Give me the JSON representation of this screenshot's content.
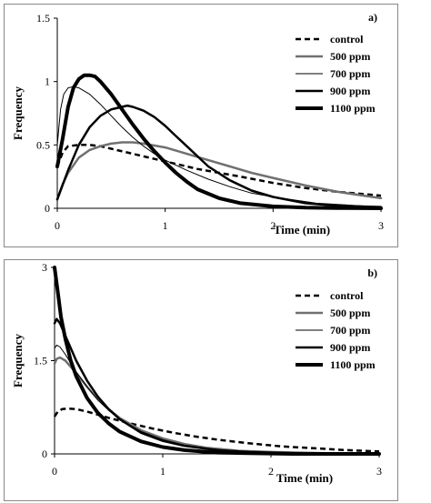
{
  "chart_data": [
    {
      "type": "line",
      "panel_label": "a)",
      "xlabel": "Time (min)",
      "ylabel": "Frequency",
      "xlim": [
        0,
        3
      ],
      "ylim": [
        0,
        1.5
      ],
      "x_ticks": [
        "0",
        "1",
        "2",
        "3"
      ],
      "y_ticks": [
        "0",
        "0.5",
        "1",
        "1.5"
      ],
      "grid": false,
      "legend_position": "right",
      "series": [
        {
          "name": "control",
          "style": "dashed",
          "color": "#000000",
          "width": 2.5,
          "x": [
            0,
            0.05,
            0.1,
            0.2,
            0.3,
            0.4,
            0.5,
            0.7,
            0.9,
            1.1,
            1.3,
            1.5,
            1.7,
            2.0,
            2.3,
            2.6,
            3.0
          ],
          "y": [
            0.33,
            0.44,
            0.49,
            0.5,
            0.5,
            0.49,
            0.47,
            0.43,
            0.39,
            0.35,
            0.31,
            0.28,
            0.25,
            0.2,
            0.16,
            0.13,
            0.1
          ]
        },
        {
          "name": "500 ppm",
          "style": "solid",
          "color": "#707070",
          "width": 2.5,
          "x": [
            0,
            0.05,
            0.1,
            0.2,
            0.3,
            0.4,
            0.5,
            0.6,
            0.7,
            0.8,
            1.0,
            1.2,
            1.4,
            1.6,
            1.8,
            2.0,
            2.3,
            2.6,
            3.0
          ],
          "y": [
            0.07,
            0.19,
            0.28,
            0.4,
            0.46,
            0.49,
            0.51,
            0.52,
            0.52,
            0.51,
            0.48,
            0.43,
            0.38,
            0.33,
            0.28,
            0.24,
            0.18,
            0.13,
            0.08
          ]
        },
        {
          "name": "700 ppm",
          "style": "solid",
          "color": "#000000",
          "width": 1,
          "x": [
            0,
            0.03,
            0.06,
            0.1,
            0.15,
            0.2,
            0.3,
            0.4,
            0.5,
            0.6,
            0.7,
            0.8,
            0.9,
            1.0,
            1.2,
            1.4,
            1.6,
            1.8,
            2.0,
            2.4,
            3.0
          ],
          "y": [
            0.5,
            0.78,
            0.9,
            0.95,
            0.96,
            0.95,
            0.9,
            0.82,
            0.73,
            0.64,
            0.56,
            0.49,
            0.43,
            0.38,
            0.3,
            0.23,
            0.17,
            0.12,
            0.09,
            0.04,
            0.01
          ]
        },
        {
          "name": "900 ppm",
          "style": "solid",
          "color": "#000000",
          "width": 2.5,
          "x": [
            0,
            0.1,
            0.2,
            0.3,
            0.4,
            0.5,
            0.6,
            0.65,
            0.7,
            0.8,
            0.9,
            1.0,
            1.1,
            1.2,
            1.3,
            1.4,
            1.6,
            1.8,
            2.0,
            2.3,
            2.6,
            3.0
          ],
          "y": [
            0.07,
            0.3,
            0.5,
            0.64,
            0.73,
            0.78,
            0.8,
            0.81,
            0.8,
            0.77,
            0.72,
            0.65,
            0.57,
            0.49,
            0.41,
            0.33,
            0.22,
            0.14,
            0.09,
            0.04,
            0.02,
            0.01
          ]
        },
        {
          "name": "1100 ppm",
          "style": "solid",
          "color": "#000000",
          "width": 4,
          "x": [
            0,
            0.05,
            0.1,
            0.15,
            0.2,
            0.25,
            0.3,
            0.35,
            0.4,
            0.5,
            0.6,
            0.7,
            0.8,
            0.9,
            1.0,
            1.1,
            1.2,
            1.3,
            1.5,
            1.7,
            2.0,
            2.3,
            2.6,
            3.0
          ],
          "y": [
            0.33,
            0.55,
            0.8,
            0.95,
            1.02,
            1.05,
            1.05,
            1.04,
            1.0,
            0.9,
            0.78,
            0.66,
            0.55,
            0.45,
            0.36,
            0.28,
            0.21,
            0.15,
            0.08,
            0.04,
            0.015,
            0.005,
            0.002,
            0.0
          ]
        }
      ]
    },
    {
      "type": "line",
      "panel_label": "b)",
      "xlabel": "Time (min)",
      "ylabel": "Frequency",
      "xlim": [
        0,
        3
      ],
      "ylim": [
        0,
        3
      ],
      "x_ticks": [
        "0",
        "1",
        "2",
        "3"
      ],
      "y_ticks": [
        "0",
        "1.5",
        "3"
      ],
      "grid": false,
      "legend_position": "right",
      "series": [
        {
          "name": "control",
          "style": "dashed",
          "color": "#000000",
          "width": 2.5,
          "x": [
            0,
            0.03,
            0.07,
            0.12,
            0.2,
            0.3,
            0.4,
            0.5,
            0.7,
            0.9,
            1.1,
            1.3,
            1.5,
            1.8,
            2.1,
            2.4,
            2.7,
            3.0
          ],
          "y": [
            0.6,
            0.68,
            0.72,
            0.73,
            0.72,
            0.68,
            0.63,
            0.58,
            0.49,
            0.41,
            0.34,
            0.28,
            0.23,
            0.17,
            0.12,
            0.09,
            0.06,
            0.04
          ]
        },
        {
          "name": "500 ppm",
          "style": "solid",
          "color": "#707070",
          "width": 2.5,
          "x": [
            0,
            0.02,
            0.05,
            0.1,
            0.2,
            0.3,
            0.4,
            0.5,
            0.6,
            0.8,
            1.0,
            1.2,
            1.4,
            1.7,
            2.0,
            2.5,
            3.0
          ],
          "y": [
            1.45,
            1.53,
            1.55,
            1.5,
            1.3,
            1.08,
            0.88,
            0.72,
            0.58,
            0.38,
            0.25,
            0.16,
            0.1,
            0.05,
            0.03,
            0.01,
            0.0
          ]
        },
        {
          "name": "700 ppm",
          "style": "solid",
          "color": "#000000",
          "width": 1,
          "x": [
            0,
            0.02,
            0.05,
            0.1,
            0.2,
            0.3,
            0.4,
            0.5,
            0.6,
            0.8,
            1.0,
            1.2,
            1.4,
            1.7,
            2.0,
            2.5,
            3.0
          ],
          "y": [
            1.7,
            1.75,
            1.72,
            1.6,
            1.32,
            1.08,
            0.87,
            0.7,
            0.56,
            0.36,
            0.23,
            0.14,
            0.09,
            0.04,
            0.02,
            0.005,
            0.0
          ]
        },
        {
          "name": "900 ppm",
          "style": "solid",
          "color": "#000000",
          "width": 2.5,
          "x": [
            0,
            0.02,
            0.05,
            0.1,
            0.2,
            0.3,
            0.4,
            0.5,
            0.6,
            0.8,
            1.0,
            1.2,
            1.5,
            1.8,
            2.2,
            2.6,
            3.0
          ],
          "y": [
            2.1,
            2.17,
            2.1,
            1.9,
            1.5,
            1.18,
            0.92,
            0.72,
            0.56,
            0.34,
            0.21,
            0.13,
            0.06,
            0.03,
            0.01,
            0.0,
            0.0
          ]
        },
        {
          "name": "1100 ppm",
          "style": "solid",
          "color": "#000000",
          "width": 4,
          "x": [
            0,
            0.03,
            0.06,
            0.1,
            0.15,
            0.2,
            0.3,
            0.4,
            0.5,
            0.6,
            0.8,
            1.0,
            1.2,
            1.5,
            1.8,
            2.2,
            2.6,
            3.0
          ],
          "y": [
            3.0,
            2.6,
            2.2,
            1.85,
            1.5,
            1.25,
            0.9,
            0.66,
            0.49,
            0.36,
            0.2,
            0.11,
            0.06,
            0.02,
            0.01,
            0.0,
            0.0,
            0.0
          ]
        }
      ]
    }
  ]
}
